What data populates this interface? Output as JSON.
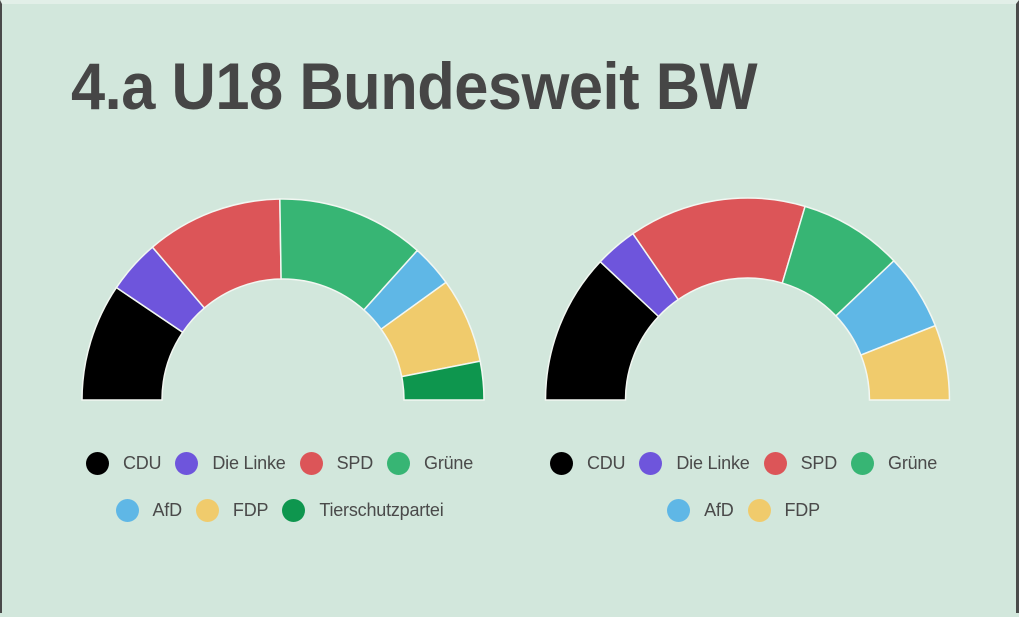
{
  "title": "4.a U18 Bundesweit BW",
  "colors": {
    "background": "#d2e7dc",
    "title": "#464646",
    "segment_stroke": "#f2f7f2"
  },
  "parties": {
    "CDU": {
      "label": "CDU",
      "color": "#000000"
    },
    "Die Linke": {
      "label": "Die Linke",
      "color": "#6e55dc"
    },
    "SPD": {
      "label": "SPD",
      "color": "#dc5558"
    },
    "Grüne": {
      "label": "Grüne",
      "color": "#37b574"
    },
    "AfD": {
      "label": "AfD",
      "color": "#5fb7e6"
    },
    "FDP": {
      "label": "FDP",
      "color": "#f0cb6c"
    },
    "Tierschutzpartei": {
      "label": "Tierschutzpartei",
      "color": "#0e964e"
    }
  },
  "chart_data": [
    {
      "type": "pie",
      "subtype": "half-donut",
      "title": "",
      "categories": [
        "CDU",
        "Die Linke",
        "SPD",
        "Grüne",
        "AfD",
        "FDP",
        "Tierschutzpartei"
      ],
      "values": [
        18.9,
        8.6,
        22.0,
        23.8,
        6.8,
        13.7,
        6.2
      ],
      "colors": [
        "#000000",
        "#6e55dc",
        "#dc5558",
        "#37b574",
        "#5fb7e6",
        "#f0cb6c",
        "#0e964e"
      ],
      "legend": {
        "placement": "bottom",
        "rows": [
          [
            "CDU",
            "Die Linke",
            "SPD",
            "Grüne"
          ],
          [
            "AfD",
            "FDP",
            "Tierschutzpartei"
          ]
        ]
      }
    },
    {
      "type": "pie",
      "subtype": "half-donut",
      "title": "",
      "categories": [
        "CDU",
        "Die Linke",
        "SPD",
        "Grüne",
        "AfD",
        "FDP"
      ],
      "values": [
        24.0,
        6.8,
        28.4,
        16.6,
        12.2,
        12.0
      ],
      "colors": [
        "#000000",
        "#6e55dc",
        "#dc5558",
        "#37b574",
        "#5fb7e6",
        "#f0cb6c"
      ],
      "legend": {
        "placement": "bottom",
        "rows": [
          [
            "CDU",
            "Die Linke",
            "SPD",
            "Grüne"
          ],
          [
            "AfD",
            "FDP"
          ]
        ]
      }
    }
  ]
}
